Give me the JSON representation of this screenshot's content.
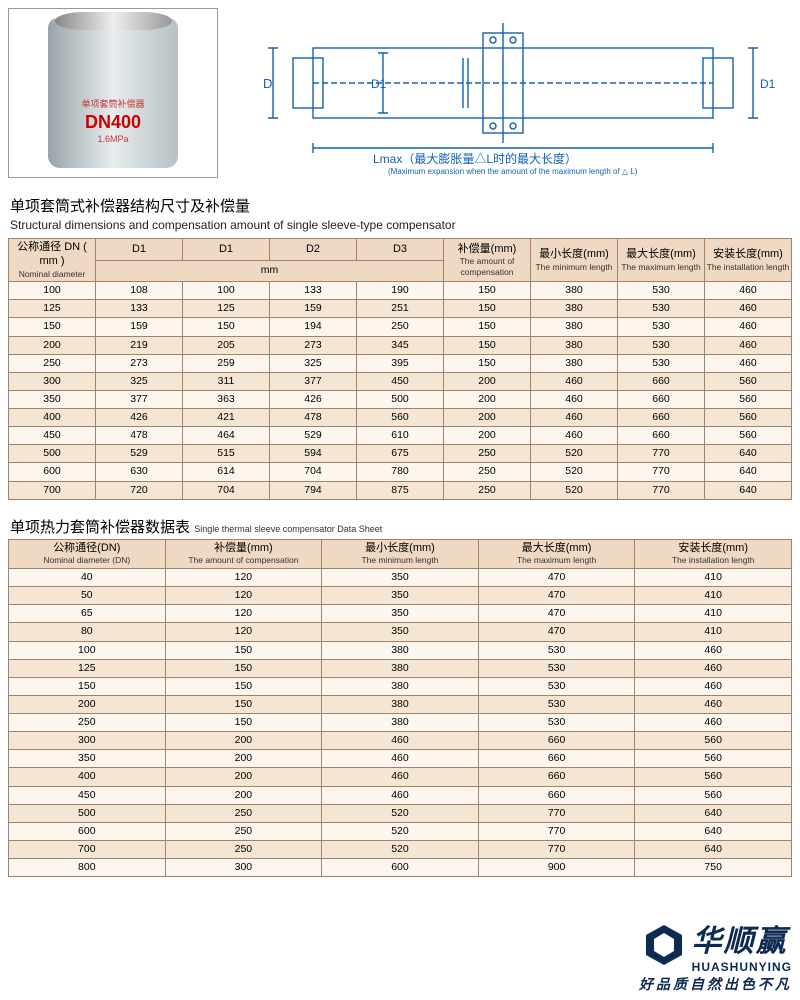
{
  "product_photo": {
    "label_line1": "单项套筒补偿器",
    "label_line2": "DN400",
    "label_line3": "1.6MPa"
  },
  "diagram": {
    "labels": {
      "D": "D",
      "D1": "D1",
      "Lmax_cn": "Lmax（最大膨胀量△L时的最大长度）",
      "Lmax_en": "(Maximum expansion when the amount of the maximum length of △ L)"
    },
    "stroke": "#1560b3"
  },
  "table1": {
    "title_cn": "单项套筒式补偿器结构尺寸及补偿量",
    "title_en": "Structural dimensions and compensation amount of single sleeve-type compensator",
    "header_bg": "#efd9c3",
    "row_odd": "#fdf6ee",
    "row_even": "#f5e6d3",
    "border": "#a0826d",
    "cols": [
      {
        "cn": "公称通径 DN ( mm )",
        "en": "Nominal diameter"
      },
      {
        "cn": "D1",
        "en": ""
      },
      {
        "cn": "D1",
        "en": ""
      },
      {
        "cn": "D2",
        "en": ""
      },
      {
        "cn": "D3",
        "en": ""
      },
      {
        "cn": "补偿量(mm)",
        "en": "The amount of compensation"
      },
      {
        "cn": "最小长度(mm)",
        "en": "The minimum length"
      },
      {
        "cn": "最大长度(mm)",
        "en": "The maximum length"
      },
      {
        "cn": "安装长度(mm)",
        "en": "The installation length"
      }
    ],
    "mm_label": "mm",
    "rows": [
      [
        "100",
        "108",
        "100",
        "133",
        "190",
        "150",
        "380",
        "530",
        "460"
      ],
      [
        "125",
        "133",
        "125",
        "159",
        "251",
        "150",
        "380",
        "530",
        "460"
      ],
      [
        "150",
        "159",
        "150",
        "194",
        "250",
        "150",
        "380",
        "530",
        "460"
      ],
      [
        "200",
        "219",
        "205",
        "273",
        "345",
        "150",
        "380",
        "530",
        "460"
      ],
      [
        "250",
        "273",
        "259",
        "325",
        "395",
        "150",
        "380",
        "530",
        "460"
      ],
      [
        "300",
        "325",
        "311",
        "377",
        "450",
        "200",
        "460",
        "660",
        "560"
      ],
      [
        "350",
        "377",
        "363",
        "426",
        "500",
        "200",
        "460",
        "660",
        "560"
      ],
      [
        "400",
        "426",
        "421",
        "478",
        "560",
        "200",
        "460",
        "660",
        "560"
      ],
      [
        "450",
        "478",
        "464",
        "529",
        "610",
        "200",
        "460",
        "660",
        "560"
      ],
      [
        "500",
        "529",
        "515",
        "594",
        "675",
        "250",
        "520",
        "770",
        "640"
      ],
      [
        "600",
        "630",
        "614",
        "704",
        "780",
        "250",
        "520",
        "770",
        "640"
      ],
      [
        "700",
        "720",
        "704",
        "794",
        "875",
        "250",
        "520",
        "770",
        "640"
      ]
    ]
  },
  "table2": {
    "title_cn": "单项热力套筒补偿器数据表",
    "title_en": "Single thermal sleeve compensator Data Sheet",
    "cols": [
      {
        "cn": "公称通径(DN)",
        "en": "Nominal diameter (DN)"
      },
      {
        "cn": "补偿量(mm)",
        "en": "The amount of compensation"
      },
      {
        "cn": "最小长度(mm)",
        "en": "The minimum length"
      },
      {
        "cn": "最大长度(mm)",
        "en": "The maximum length"
      },
      {
        "cn": "安装长度(mm)",
        "en": "The installation length"
      }
    ],
    "rows": [
      [
        "40",
        "120",
        "350",
        "470",
        "410"
      ],
      [
        "50",
        "120",
        "350",
        "470",
        "410"
      ],
      [
        "65",
        "120",
        "350",
        "470",
        "410"
      ],
      [
        "80",
        "120",
        "350",
        "470",
        "410"
      ],
      [
        "100",
        "150",
        "380",
        "530",
        "460"
      ],
      [
        "125",
        "150",
        "380",
        "530",
        "460"
      ],
      [
        "150",
        "150",
        "380",
        "530",
        "460"
      ],
      [
        "200",
        "150",
        "380",
        "530",
        "460"
      ],
      [
        "250",
        "150",
        "380",
        "530",
        "460"
      ],
      [
        "300",
        "200",
        "460",
        "660",
        "560"
      ],
      [
        "350",
        "200",
        "460",
        "660",
        "560"
      ],
      [
        "400",
        "200",
        "460",
        "660",
        "560"
      ],
      [
        "450",
        "200",
        "460",
        "660",
        "560"
      ],
      [
        "500",
        "250",
        "520",
        "770",
        "640"
      ],
      [
        "600",
        "250",
        "520",
        "770",
        "640"
      ],
      [
        "700",
        "250",
        "520",
        "770",
        "640"
      ],
      [
        "800",
        "300",
        "600",
        "900",
        "750"
      ]
    ]
  },
  "logo": {
    "cn": "华顺赢",
    "en": "HUASHUNYING",
    "tag": "好品质自然出色不凡",
    "color": "#0d2a52"
  }
}
